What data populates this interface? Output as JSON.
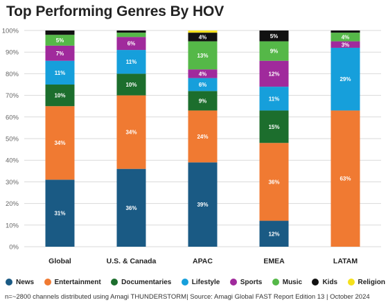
{
  "title": "Top Performing Genres By HOV",
  "footnote": "n=~2800 channels distributed using Amagi THUNDERSTORM| Source: Amagi Global FAST Report Edition 13 | October 2024",
  "chart_data": {
    "type": "bar",
    "stacked": true,
    "title": "Top Performing Genres By HOV",
    "categories": [
      "Global",
      "U.S. & Canada",
      "APAC",
      "EMEA",
      "LATAM"
    ],
    "ylim": [
      0,
      100
    ],
    "yticks": [
      "0%",
      "10%",
      "20%",
      "30%",
      "40%",
      "50%",
      "60%",
      "70%",
      "80%",
      "90%",
      "100%"
    ],
    "grid": true,
    "legend_position": "bottom",
    "series": [
      {
        "name": "News",
        "color": "#1a5a84",
        "values": [
          31,
          36,
          39,
          12,
          0
        ],
        "labels": [
          "31%",
          "36%",
          "39%",
          "12%",
          ""
        ]
      },
      {
        "name": "Entertainment",
        "color": "#f07a32",
        "values": [
          34,
          34,
          24,
          36,
          63
        ],
        "labels": [
          "34%",
          "34%",
          "24%",
          "36%",
          "63%"
        ]
      },
      {
        "name": "Documentaries",
        "color": "#1c6e2d",
        "values": [
          10,
          10,
          9,
          15,
          0
        ],
        "labels": [
          "10%",
          "10%",
          "9%",
          "15%",
          ""
        ]
      },
      {
        "name": "Lifestyle",
        "color": "#169fdb",
        "values": [
          11,
          11,
          6,
          11,
          29
        ],
        "labels": [
          "11%",
          "11%",
          "6%",
          "11%",
          "29%"
        ]
      },
      {
        "name": "Sports",
        "color": "#a02a9c",
        "values": [
          7,
          6,
          4,
          12,
          3
        ],
        "labels": [
          "7%",
          "6%",
          "4%",
          "12%",
          "3%"
        ]
      },
      {
        "name": "Music",
        "color": "#55b848",
        "values": [
          5,
          2,
          13,
          9,
          4
        ],
        "labels": [
          "5%",
          "",
          "13%",
          "9%",
          "4%"
        ]
      },
      {
        "name": "Kids",
        "color": "#111111",
        "values": [
          2,
          1,
          4,
          5,
          1
        ],
        "labels": [
          "",
          "",
          "4%",
          "5%",
          ""
        ]
      },
      {
        "name": "Religion",
        "color": "#f5e11c",
        "values": [
          0,
          0,
          1,
          0,
          0
        ],
        "labels": [
          "",
          "",
          "",
          "",
          ""
        ]
      }
    ]
  }
}
